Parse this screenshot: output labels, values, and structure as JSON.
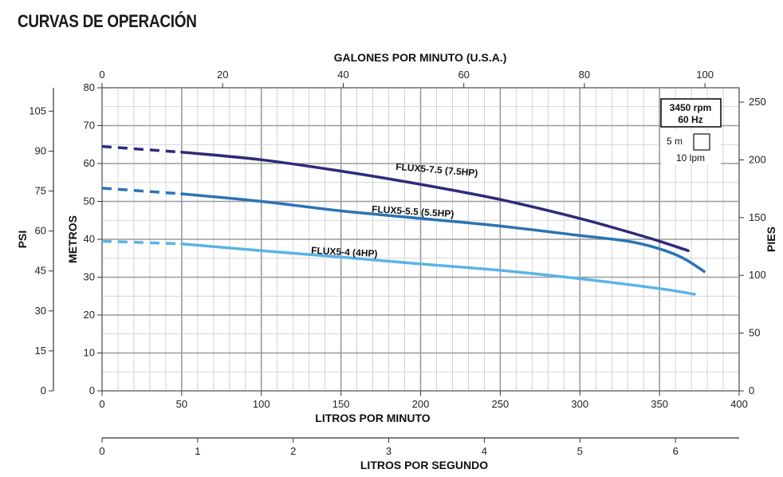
{
  "page_title": "CURVAS DE OPERACIÓN",
  "chart_data": {
    "type": "line",
    "title": "CURVAS DE OPERACIÓN",
    "x_bottom": {
      "label": "LITROS POR MINUTO",
      "range": [
        0,
        400
      ],
      "ticks": [
        0,
        50,
        100,
        150,
        200,
        250,
        300,
        350,
        400
      ]
    },
    "x_top": {
      "label": "GALONES POR MINUTO (U.S.A.)",
      "range": [
        0,
        105.67
      ],
      "ticks": [
        0,
        20,
        40,
        60,
        80,
        100
      ]
    },
    "x_secondary": {
      "label": "LITROS POR SEGUNDO",
      "range": [
        0,
        6.667
      ],
      "ticks": [
        0,
        1,
        2,
        3,
        4,
        5,
        6
      ]
    },
    "y_left_inner": {
      "label": "METROS",
      "range": [
        0,
        80
      ],
      "ticks": [
        0,
        10,
        20,
        30,
        40,
        50,
        60,
        70,
        80
      ]
    },
    "y_left_outer": {
      "label": "PSI",
      "range": [
        0,
        113.8
      ],
      "ticks": [
        0,
        15,
        30,
        45,
        60,
        75,
        90,
        105
      ]
    },
    "y_right": {
      "label": "PIES",
      "range": [
        0,
        262.5
      ],
      "ticks": [
        0,
        50,
        100,
        150,
        200,
        250
      ]
    },
    "grid": true,
    "legend_box": {
      "speed": "3450 rpm",
      "frequency": "60 Hz",
      "cell_height": "5 m",
      "cell_width": "10 lpm"
    },
    "series": [
      {
        "name": "FLUX5-7.5 (7.5HP)",
        "color": "#2e2a7a",
        "dashed": {
          "x": [
            0,
            50
          ],
          "y": [
            64.5,
            63
          ]
        },
        "x": [
          50,
          100,
          150,
          200,
          250,
          300,
          330,
          350,
          368
        ],
        "y": [
          63,
          61,
          58,
          54.5,
          50.5,
          45.5,
          42,
          39.5,
          37
        ]
      },
      {
        "name": "FLUX5-5.5 (5.5HP)",
        "color": "#2a73b5",
        "dashed": {
          "x": [
            0,
            50
          ],
          "y": [
            53.5,
            52
          ]
        },
        "x": [
          50,
          100,
          150,
          200,
          250,
          300,
          330,
          350,
          365,
          378
        ],
        "y": [
          52,
          50,
          47.5,
          45.5,
          43.5,
          41,
          39.5,
          37.5,
          35,
          31.5
        ]
      },
      {
        "name": "FLUX5-4 (4HP)",
        "color": "#5bb4e5",
        "dashed": {
          "x": [
            0,
            50
          ],
          "y": [
            39.5,
            38.8
          ]
        },
        "x": [
          50,
          100,
          150,
          200,
          250,
          300,
          350,
          372
        ],
        "y": [
          38.8,
          37,
          35.3,
          33.5,
          31.8,
          29.6,
          27,
          25.5
        ]
      }
    ]
  }
}
